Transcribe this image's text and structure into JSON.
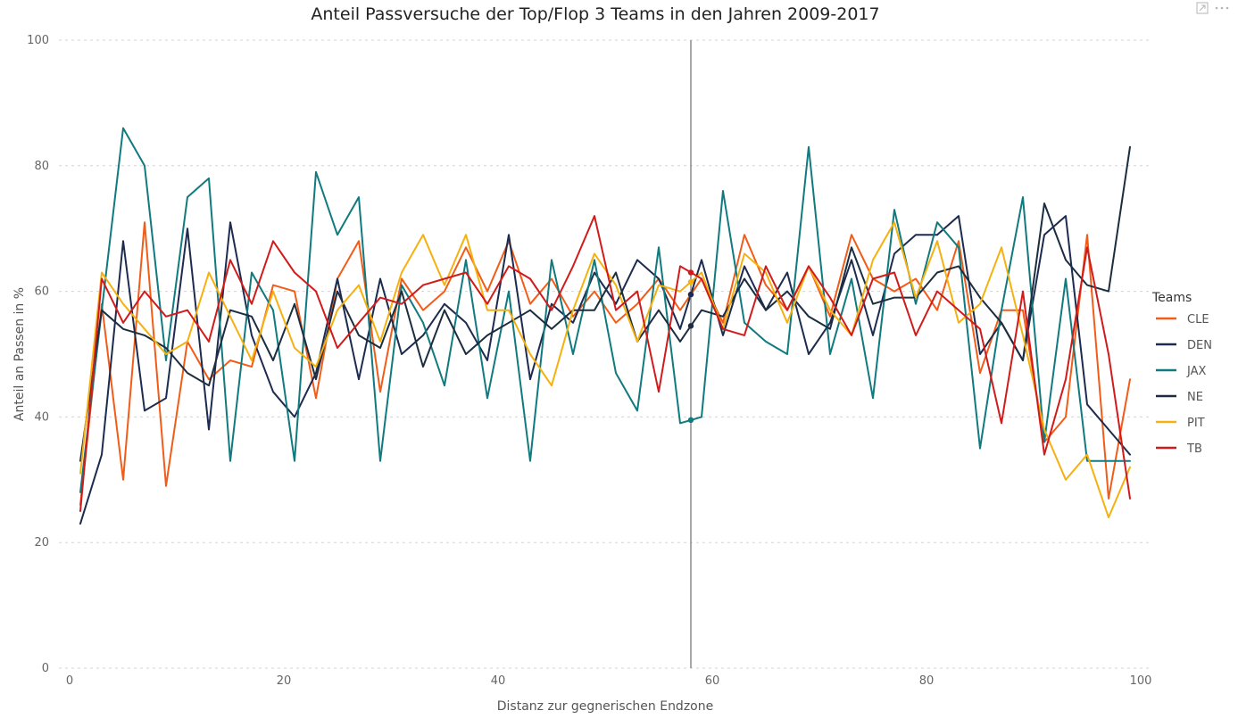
{
  "chart_data": {
    "type": "line",
    "title": "Anteil Passversuche der Top/Flop 3 Teams in den Jahren 2009-2017",
    "xlabel": "Distanz zur gegnerischen Endzone",
    "ylabel": "Anteil an Passen in %",
    "xlim": [
      0,
      100
    ],
    "ylim": [
      0,
      100
    ],
    "xticks": [
      0,
      20,
      40,
      60,
      80,
      100
    ],
    "yticks": [
      0,
      20,
      40,
      60,
      80,
      100
    ],
    "grid": "horizontal dashed",
    "legend": {
      "title": "Teams",
      "placement": "right"
    },
    "x": [
      1,
      3,
      5,
      7,
      9,
      11,
      13,
      15,
      17,
      19,
      21,
      23,
      25,
      27,
      29,
      31,
      33,
      35,
      37,
      39,
      41,
      43,
      45,
      47,
      49,
      51,
      53,
      55,
      57,
      59,
      61,
      63,
      65,
      67,
      69,
      71,
      73,
      75,
      77,
      79,
      81,
      83,
      85,
      87,
      89,
      91,
      93,
      95,
      97,
      99
    ],
    "hover_x": 58,
    "series": [
      {
        "name": "CLE",
        "color": "#F25C19",
        "values": [
          26,
          58,
          30,
          71,
          29,
          52,
          46,
          49,
          48,
          61,
          60,
          43,
          62,
          68,
          44,
          62,
          57,
          60,
          67,
          60,
          68,
          58,
          62,
          56,
          60,
          55,
          58,
          62,
          57,
          62,
          55,
          69,
          61,
          57,
          64,
          56,
          69,
          62,
          60,
          62,
          57,
          68,
          47,
          57,
          57,
          36,
          40,
          69,
          27,
          46
        ]
      },
      {
        "name": "DEN",
        "color": "#1C2B4F",
        "values": [
          23,
          34,
          68,
          41,
          43,
          70,
          38,
          71,
          53,
          44,
          40,
          47,
          62,
          46,
          62,
          50,
          53,
          58,
          55,
          49,
          69,
          46,
          58,
          55,
          63,
          58,
          65,
          62,
          54,
          65,
          53,
          64,
          57,
          63,
          50,
          55,
          65,
          53,
          66,
          69,
          69,
          72,
          50,
          55,
          49,
          69,
          72,
          42,
          38,
          34
        ]
      },
      {
        "name": "JAX",
        "color": "#117A7E",
        "values": [
          28,
          57,
          86,
          80,
          49,
          75,
          78,
          33,
          63,
          57,
          33,
          79,
          69,
          75,
          33,
          61,
          55,
          45,
          65,
          43,
          60,
          33,
          65,
          50,
          65,
          47,
          41,
          67,
          39,
          40,
          76,
          55,
          52,
          50,
          83,
          50,
          62,
          43,
          73,
          58,
          71,
          67,
          35,
          57,
          75,
          36,
          62,
          33,
          33,
          33
        ]
      },
      {
        "name": "NE",
        "color": "#1C2D40",
        "values": [
          33,
          57,
          54,
          53,
          51,
          47,
          45,
          57,
          56,
          49,
          58,
          46,
          60,
          53,
          51,
          60,
          48,
          57,
          50,
          53,
          55,
          57,
          54,
          57,
          57,
          63,
          52,
          57,
          52,
          57,
          56,
          62,
          57,
          60,
          56,
          54,
          67,
          58,
          59,
          59,
          63,
          64,
          59,
          55,
          49,
          74,
          65,
          61,
          60,
          83
        ]
      },
      {
        "name": "PIT",
        "color": "#F5B10F",
        "values": [
          31,
          63,
          58,
          54,
          50,
          52,
          63,
          56,
          49,
          60,
          51,
          48,
          57,
          61,
          52,
          63,
          69,
          61,
          69,
          57,
          57,
          50,
          45,
          57,
          66,
          61,
          52,
          61,
          60,
          63,
          54,
          66,
          63,
          55,
          64,
          57,
          53,
          65,
          71,
          59,
          68,
          55,
          58,
          67,
          53,
          38,
          30,
          34,
          24,
          32
        ]
      },
      {
        "name": "TB",
        "color": "#D11B1B",
        "values": [
          25,
          62,
          55,
          60,
          56,
          57,
          52,
          65,
          58,
          68,
          63,
          60,
          51,
          55,
          59,
          58,
          61,
          62,
          63,
          58,
          64,
          62,
          57,
          64,
          72,
          57,
          60,
          44,
          64,
          62,
          54,
          53,
          64,
          57,
          64,
          59,
          53,
          62,
          63,
          53,
          60,
          57,
          54,
          39,
          60,
          34,
          46,
          67,
          50,
          27
        ]
      }
    ]
  }
}
